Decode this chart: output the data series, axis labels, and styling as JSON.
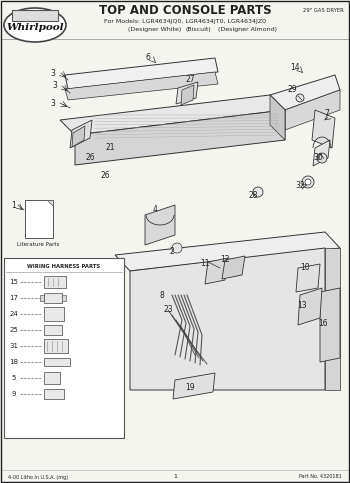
{
  "title": "TOP AND CONSOLE PARTS",
  "subtitle_line1": "For Models: LGR4634JQ0, LGR4634JT0, LGR4634JZ0",
  "subtitle_line2_col1": "(Designer White)",
  "subtitle_line2_col2": "(Biscuit)",
  "subtitle_line2_col3": "(Designer Almond)",
  "appliance_type": "29\" GAS DRYER",
  "footer_left": "4-00 Litho In U.S.A. (mg)",
  "footer_center": "1",
  "footer_right": "Part No. 4320181",
  "bg_color": "#f5f5f0",
  "border_color": "#222222",
  "line_color": "#333333",
  "text_color": "#222222",
  "part_label_size": 5.5,
  "header_title_size": 8.5,
  "header_subtitle_size": 4.5
}
